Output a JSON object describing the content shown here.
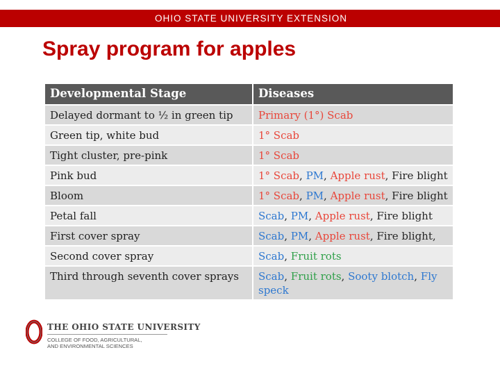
{
  "header": {
    "banner_text": "OHIO STATE UNIVERSITY EXTENSION"
  },
  "slide": {
    "title": "Spray program for apples"
  },
  "table": {
    "columns": [
      "Developmental Stage",
      "Diseases"
    ],
    "rows": [
      {
        "stage": "Delayed dormant to ½ in green tip",
        "diseases": [
          {
            "text": "Primary (1°) Scab",
            "color": "red"
          }
        ]
      },
      {
        "stage": "Green tip, white bud",
        "diseases": [
          {
            "text": "1° Scab",
            "color": "red"
          }
        ]
      },
      {
        "stage": "Tight cluster, pre-pink",
        "diseases": [
          {
            "text": "1° Scab",
            "color": "red"
          }
        ]
      },
      {
        "stage": "Pink bud",
        "diseases": [
          {
            "text": "1° Scab",
            "color": "red"
          },
          {
            "text": ", ",
            "color": "dark"
          },
          {
            "text": "PM",
            "color": "blue"
          },
          {
            "text": ", ",
            "color": "dark"
          },
          {
            "text": "Apple rust",
            "color": "red"
          },
          {
            "text": ", Fire blight",
            "color": "dark"
          }
        ]
      },
      {
        "stage": "Bloom",
        "diseases": [
          {
            "text": "1° Scab",
            "color": "red"
          },
          {
            "text": ", ",
            "color": "dark"
          },
          {
            "text": "PM",
            "color": "blue"
          },
          {
            "text": ", ",
            "color": "dark"
          },
          {
            "text": "Apple rust",
            "color": "red"
          },
          {
            "text": ", Fire blight",
            "color": "dark"
          }
        ]
      },
      {
        "stage": "Petal fall",
        "diseases": [
          {
            "text": "Scab",
            "color": "blue"
          },
          {
            "text": ", ",
            "color": "dark"
          },
          {
            "text": "PM",
            "color": "blue"
          },
          {
            "text": ", ",
            "color": "dark"
          },
          {
            "text": "Apple rust",
            "color": "red"
          },
          {
            "text": ", Fire blight",
            "color": "dark"
          }
        ]
      },
      {
        "stage": "First cover spray",
        "diseases": [
          {
            "text": "Scab",
            "color": "blue"
          },
          {
            "text": ", ",
            "color": "dark"
          },
          {
            "text": "PM",
            "color": "blue"
          },
          {
            "text": ", ",
            "color": "dark"
          },
          {
            "text": "Apple rust",
            "color": "red"
          },
          {
            "text": ", Fire blight,",
            "color": "dark"
          }
        ]
      },
      {
        "stage": "Second cover spray",
        "diseases": [
          {
            "text": "Scab",
            "color": "blue"
          },
          {
            "text": ", ",
            "color": "dark"
          },
          {
            "text": "Fruit rots",
            "color": "green"
          }
        ]
      },
      {
        "stage": "Third through seventh cover sprays",
        "diseases": [
          {
            "text": "Scab",
            "color": "blue"
          },
          {
            "text": ", ",
            "color": "dark"
          },
          {
            "text": "Fruit rots",
            "color": "green"
          },
          {
            "text": ", ",
            "color": "dark"
          },
          {
            "text": "Sooty blotch",
            "color": "blue"
          },
          {
            "text": ", ",
            "color": "dark"
          },
          {
            "text": "Fly speck",
            "color": "blue"
          }
        ]
      }
    ]
  },
  "footer_logo": {
    "name": "THE OHIO STATE UNIVERSITY",
    "college_line1": "COLLEGE OF FOOD, AGRICULTURAL,",
    "college_line2": "AND ENVIRONMENTAL SCIENCES"
  },
  "colors": {
    "brand": "#bb0000",
    "header_row": "#595959",
    "row_odd": "#d9d9d9",
    "row_even": "#ececec",
    "red": "#e8463a",
    "blue": "#2e78d0",
    "green": "#2f9f49",
    "dark": "#262626"
  }
}
